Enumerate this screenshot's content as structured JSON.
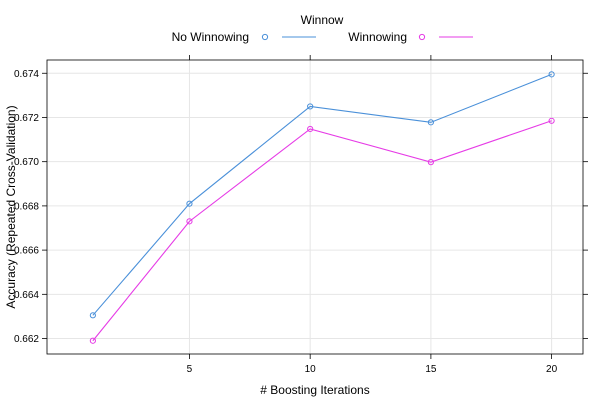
{
  "chart_data": {
    "type": "line",
    "title": "",
    "xlabel": "# Boosting Iterations",
    "ylabel": "Accuracy (Repeated Cross-Validation)",
    "x": [
      1,
      5,
      10,
      15,
      20
    ],
    "xlim": [
      -0.9,
      21.3
    ],
    "ylim": [
      0.6613,
      0.6746
    ],
    "x_ticks": [
      5,
      10,
      15,
      20
    ],
    "y_ticks": [
      0.662,
      0.664,
      0.666,
      0.668,
      0.67,
      0.672,
      0.674
    ],
    "y_tick_labels": [
      "0.662",
      "0.664",
      "0.666",
      "0.668",
      "0.670",
      "0.672",
      "0.674"
    ],
    "grid": true,
    "legend": {
      "title": "Winnow",
      "placement": "top"
    },
    "series": [
      {
        "name": "No Winnowing",
        "color": "#4a90d9",
        "values": [
          0.66305,
          0.6681,
          0.6725,
          0.67178,
          0.67395
        ]
      },
      {
        "name": "Winnowing",
        "color": "#e63be6",
        "values": [
          0.6619,
          0.6673,
          0.67148,
          0.66998,
          0.67185
        ]
      }
    ]
  }
}
